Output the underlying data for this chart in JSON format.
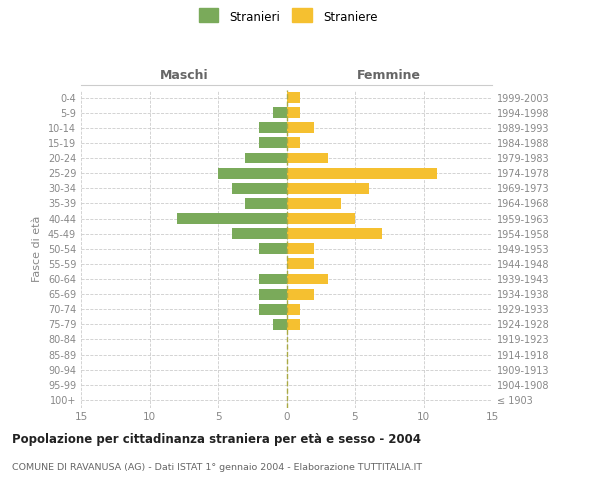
{
  "age_groups": [
    "100+",
    "95-99",
    "90-94",
    "85-89",
    "80-84",
    "75-79",
    "70-74",
    "65-69",
    "60-64",
    "55-59",
    "50-54",
    "45-49",
    "40-44",
    "35-39",
    "30-34",
    "25-29",
    "20-24",
    "15-19",
    "10-14",
    "5-9",
    "0-4"
  ],
  "birth_years": [
    "≤ 1903",
    "1904-1908",
    "1909-1913",
    "1914-1918",
    "1919-1923",
    "1924-1928",
    "1929-1933",
    "1934-1938",
    "1939-1943",
    "1944-1948",
    "1949-1953",
    "1954-1958",
    "1959-1963",
    "1964-1968",
    "1969-1973",
    "1974-1978",
    "1979-1983",
    "1984-1988",
    "1989-1993",
    "1994-1998",
    "1999-2003"
  ],
  "males": [
    0,
    0,
    0,
    0,
    0,
    1,
    2,
    2,
    2,
    0,
    2,
    4,
    8,
    3,
    4,
    5,
    3,
    2,
    2,
    1,
    0
  ],
  "females": [
    0,
    0,
    0,
    0,
    0,
    1,
    1,
    2,
    3,
    2,
    2,
    7,
    5,
    4,
    6,
    11,
    3,
    1,
    2,
    1,
    1
  ],
  "male_color": "#7aaa5a",
  "female_color": "#f5c030",
  "title": "Popolazione per cittadinanza straniera per età e sesso - 2004",
  "subtitle": "COMUNE DI RAVANUSA (AG) - Dati ISTAT 1° gennaio 2004 - Elaborazione TUTTITALIA.IT",
  "ylabel_left": "Fasce di età",
  "header_left": "Maschi",
  "header_right": "Femmine",
  "legend_males": "Stranieri",
  "legend_females": "Straniere",
  "xlim": 15,
  "background_color": "#ffffff",
  "grid_color": "#cccccc",
  "dashed_line_color": "#aaaa44"
}
